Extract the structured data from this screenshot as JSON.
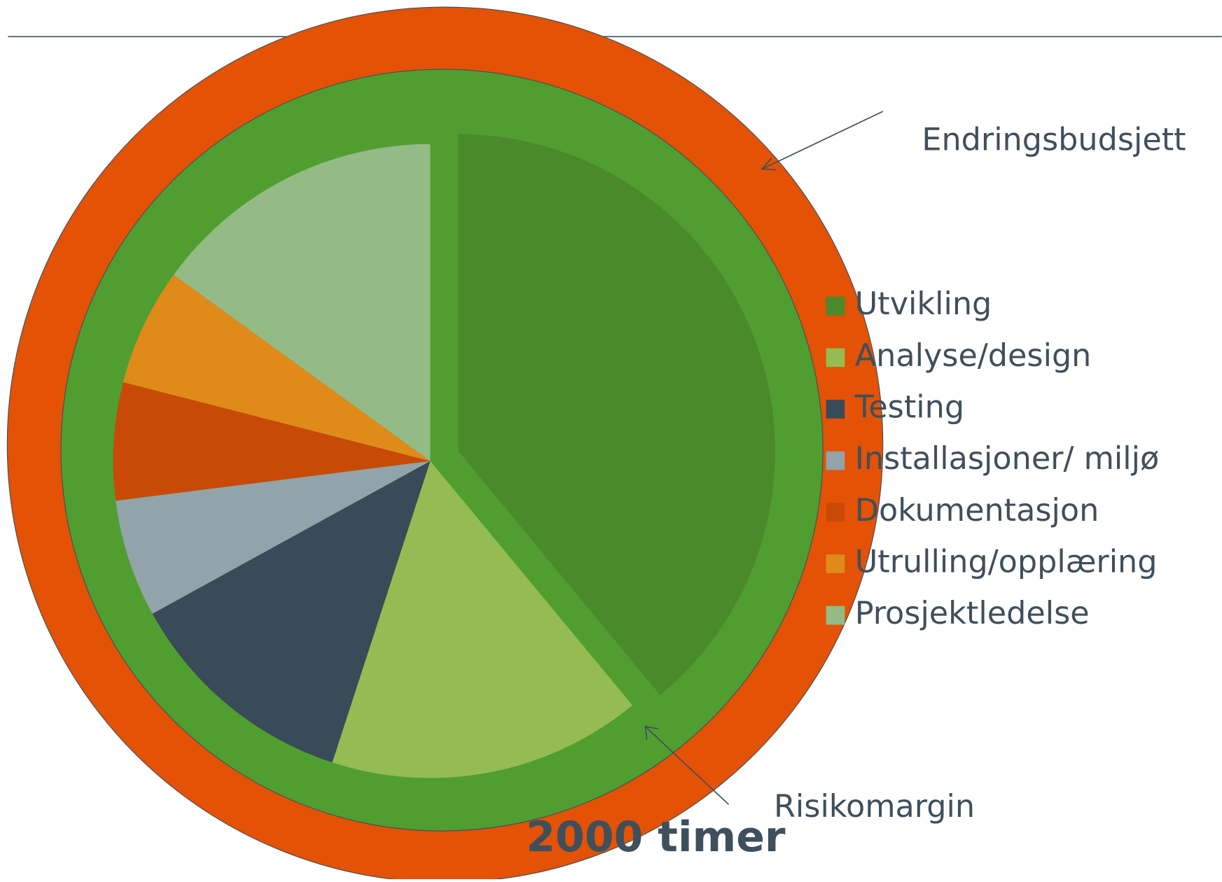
{
  "chart_data": {
    "type": "pie",
    "categories": [
      "Utvikling",
      "Analyse/design",
      "Testing",
      "Installasjoner/ miljø",
      "Dokumentasjon",
      "Utrulling/opplæring",
      "Prosjektledelse"
    ],
    "values": [
      39,
      16,
      12,
      6,
      6,
      6,
      15
    ],
    "colors": [
      "#4a8a2a",
      "#94bc52",
      "#394a58",
      "#92a4aa",
      "#c84a06",
      "#e08a1a",
      "#94bb86"
    ],
    "annotations": [
      "Endringsbudsjett",
      "Risikomargin",
      "2000 timer"
    ]
  }
}
